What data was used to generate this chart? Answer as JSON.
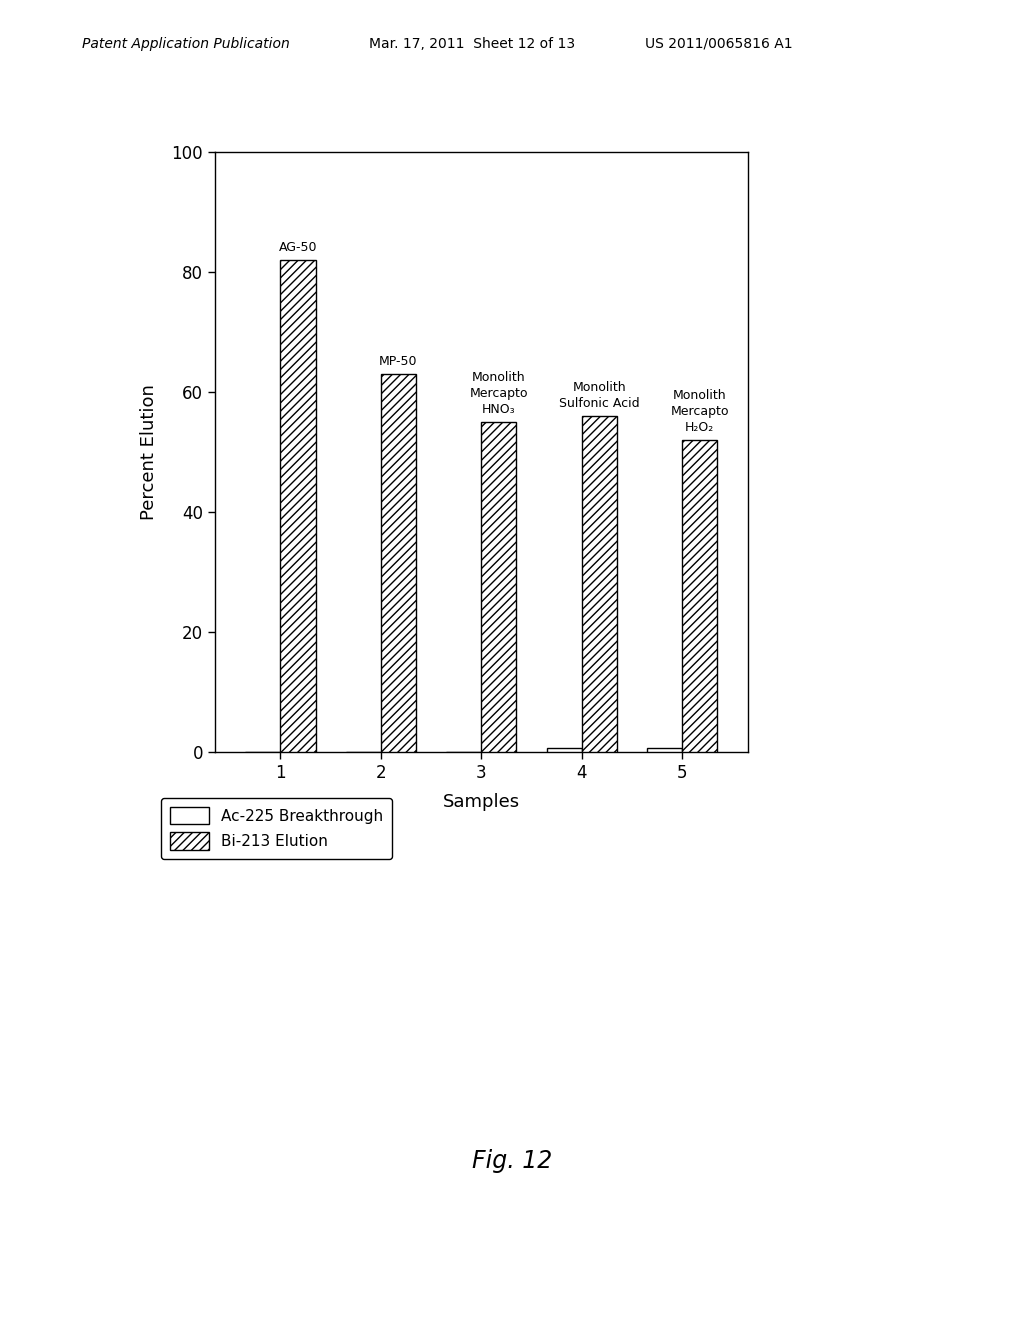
{
  "samples": [
    1,
    2,
    3,
    4,
    5
  ],
  "bar_labels": [
    "AG-50",
    "MP-50",
    "Monolith\nMercapto\nHNO₃",
    "Monolith\nSulfonic Acid",
    "Monolith\nMercapto\nH₂O₂"
  ],
  "ac225_values": [
    0.0,
    0.0,
    0.0,
    0.8,
    0.8
  ],
  "bi213_values": [
    82,
    63,
    55,
    56,
    52
  ],
  "ylabel": "Percent Elution",
  "xlabel": "Samples",
  "ylim": [
    0,
    100
  ],
  "yticks": [
    0,
    20,
    40,
    60,
    80,
    100
  ],
  "legend_labels": [
    "Ac-225 Breakthrough",
    "Bi-213 Elution"
  ],
  "fig_caption": "Fig. 12",
  "header_left": "Patent Application Publication",
  "header_mid": "Mar. 17, 2011  Sheet 12 of 13",
  "header_right": "US 2011/0065816 A1",
  "bar_width": 0.35,
  "hatch_pattern": "////",
  "bar_color": "white",
  "bar_edge_color": "black"
}
